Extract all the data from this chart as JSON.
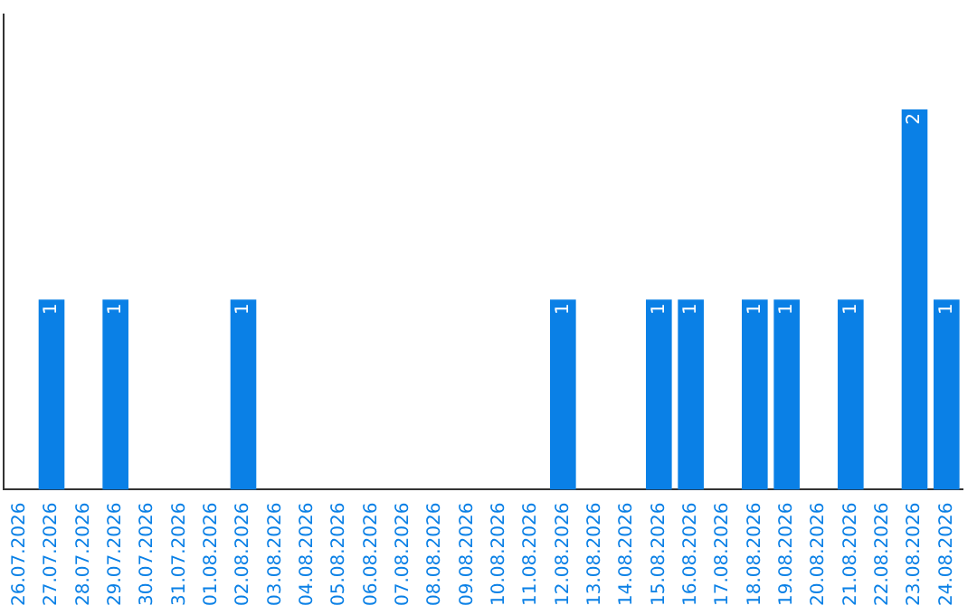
{
  "chart_data": {
    "type": "bar",
    "categories": [
      "26.07.2026",
      "27.07.2026",
      "28.07.2026",
      "29.07.2026",
      "30.07.2026",
      "31.07.2026",
      "01.08.2026",
      "02.08.2026",
      "03.08.2026",
      "04.08.2026",
      "05.08.2026",
      "06.08.2026",
      "07.08.2026",
      "08.08.2026",
      "09.08.2026",
      "10.08.2026",
      "11.08.2026",
      "12.08.2026",
      "13.08.2026",
      "14.08.2026",
      "15.08.2026",
      "16.08.2026",
      "17.08.2026",
      "18.08.2026",
      "19.08.2026",
      "20.08.2026",
      "21.08.2026",
      "22.08.2026",
      "23.08.2026",
      "24.08.2026"
    ],
    "values": [
      0,
      1,
      0,
      1,
      0,
      0,
      0,
      1,
      0,
      0,
      0,
      0,
      0,
      0,
      0,
      0,
      0,
      1,
      0,
      0,
      1,
      1,
      0,
      1,
      1,
      0,
      1,
      0,
      2,
      1
    ],
    "value_labels": [
      null,
      "1",
      null,
      "1",
      null,
      null,
      null,
      "1",
      null,
      null,
      null,
      null,
      null,
      null,
      null,
      null,
      null,
      "1",
      null,
      null,
      "1",
      "1",
      null,
      "1",
      "1",
      null,
      "1",
      null,
      "2",
      "1"
    ],
    "color": "#0a80e6",
    "tick_labels": "x",
    "grid": false,
    "legend": false
  }
}
